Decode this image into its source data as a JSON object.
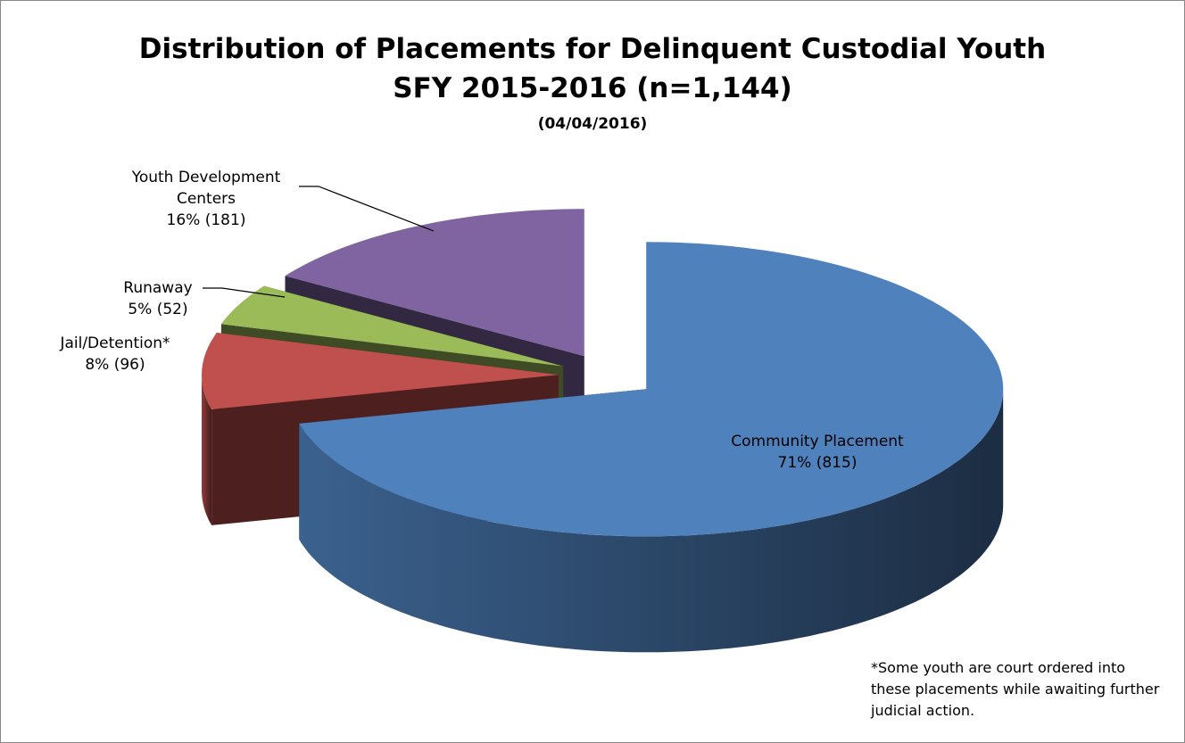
{
  "chart_data": {
    "type": "pie",
    "title": "Distribution of Placements for Delinquent Custodial Youth",
    "subtitle": "SFY 2015-2016 (n=1,144)",
    "date": "(04/04/2016)",
    "categories": [
      "Community Placement",
      "Jail/Detention*",
      "Runaway",
      "Youth Development Centers"
    ],
    "values": [
      815,
      96,
      52,
      181
    ],
    "value_labels": [
      "71% (815)",
      "8% (96)",
      "5% (52)",
      "16% (181)"
    ],
    "colors": [
      "#4f81bd",
      "#c0504d",
      "#9bbb59",
      "#8064a2"
    ],
    "annotation": "*Some youth are court ordered into these placements while awaiting further judicial action."
  }
}
